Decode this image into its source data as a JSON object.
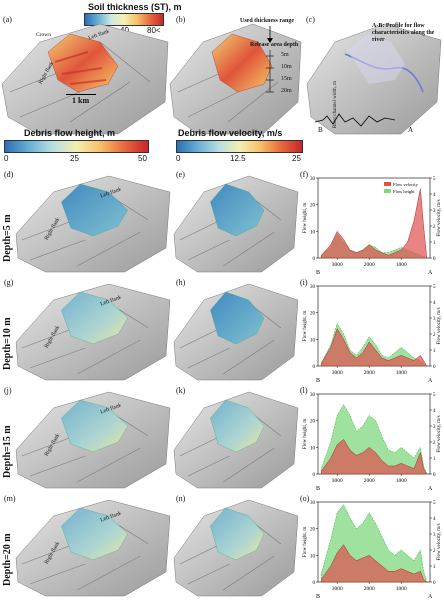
{
  "top_colorbar": {
    "title": "Soil thickness (ST), m",
    "ticks": [
      "0",
      "40",
      "80<"
    ]
  },
  "height_colorbar": {
    "title": "Debris flow height, m",
    "ticks": [
      "0",
      "25",
      "50"
    ]
  },
  "velocity_colorbar": {
    "title": "Debris flow velocity, m/s",
    "ticks": [
      "0",
      "12.5",
      "25"
    ]
  },
  "panels": {
    "a": "(a)",
    "b": "(b)",
    "c": "(c)",
    "d": "(d)",
    "e": "(e)",
    "f": "(f)",
    "g": "(g)",
    "h": "(h)",
    "i": "(i)",
    "j": "(j)",
    "k": "(k)",
    "l": "(l)",
    "m": "(m)",
    "n": "(n)",
    "o": "(o)"
  },
  "row_labels": [
    "Depth=5 m",
    "Depth=10 m",
    "Depth=15 m",
    "Depth=20 m"
  ],
  "map_labels": {
    "left_flank": "Left flank",
    "right_flank": "Right flank",
    "crown": "Crown",
    "scale": "1 km"
  },
  "panel_b": {
    "used_range": "Used thickness range",
    "release": "Release area depth",
    "depths": [
      "5m",
      "10m",
      "15m",
      "20m"
    ]
  },
  "panel_c": {
    "profile_note": "A-B: Profile for flow characteristics along the river",
    "river_label": "River channel width, m",
    "point_a": "A",
    "point_b": "B"
  },
  "profile_axes": {
    "ylabel_left": "Flow height, m",
    "ylabel_right": "Flow velocity, m/s",
    "xticks": [
      "3000",
      "2000",
      "1000"
    ],
    "end_b": "B",
    "end_a": "A",
    "yticks_left": [
      "0",
      "10",
      "20",
      "30"
    ],
    "yticks_right": [
      "0",
      "1",
      "2",
      "3",
      "4",
      "5"
    ]
  },
  "legend": {
    "velocity": "Flow velocity",
    "height": "Flow height"
  },
  "colors": {
    "velocity_fill": "#e05050",
    "height_fill": "#7fd87f"
  },
  "chart_data": [
    {
      "type": "area",
      "panel": "(f)",
      "x": [
        3500,
        3200,
        3000,
        2800,
        2600,
        2400,
        2200,
        2000,
        1800,
        1600,
        1400,
        1200,
        1000,
        800,
        600,
        400,
        300,
        200
      ],
      "series": [
        {
          "name": "Flow height",
          "values": [
            1,
            4,
            9,
            6,
            3,
            2,
            3,
            5,
            4,
            2,
            2,
            3,
            4,
            3,
            2,
            1,
            0.5,
            0
          ]
        },
        {
          "name": "Flow velocity",
          "values": [
            1,
            5,
            10,
            7,
            3,
            2,
            3,
            5,
            3,
            2,
            1,
            2,
            3,
            6,
            14,
            26,
            12,
            0
          ]
        }
      ],
      "ylim": [
        0,
        30
      ]
    },
    {
      "type": "area",
      "panel": "(i)",
      "x": [
        3500,
        3200,
        3000,
        2800,
        2600,
        2400,
        2200,
        2000,
        1800,
        1600,
        1400,
        1200,
        1000,
        800,
        600,
        400,
        300,
        200
      ],
      "series": [
        {
          "name": "Flow height",
          "values": [
            1,
            8,
            16,
            12,
            6,
            4,
            7,
            11,
            8,
            4,
            3,
            5,
            7,
            5,
            3,
            2,
            1,
            0
          ]
        },
        {
          "name": "Flow velocity",
          "values": [
            1,
            7,
            14,
            10,
            5,
            3,
            5,
            9,
            6,
            3,
            2,
            3,
            4,
            3,
            2,
            4,
            2,
            0
          ]
        }
      ],
      "ylim": [
        0,
        30
      ]
    },
    {
      "type": "area",
      "panel": "(l)",
      "x": [
        3500,
        3200,
        3000,
        2800,
        2600,
        2400,
        2200,
        2000,
        1800,
        1600,
        1400,
        1200,
        1000,
        800,
        600,
        400,
        300,
        200
      ],
      "series": [
        {
          "name": "Flow height",
          "values": [
            2,
            12,
            22,
            26,
            22,
            16,
            18,
            22,
            20,
            14,
            9,
            8,
            10,
            8,
            6,
            10,
            3,
            0
          ]
        },
        {
          "name": "Flow velocity",
          "values": [
            1,
            6,
            11,
            13,
            9,
            7,
            8,
            10,
            8,
            5,
            3,
            3,
            4,
            3,
            2,
            8,
            2,
            0
          ]
        }
      ],
      "ylim": [
        0,
        30
      ]
    },
    {
      "type": "area",
      "panel": "(o)",
      "x": [
        3500,
        3200,
        3000,
        2800,
        2600,
        2400,
        2200,
        2000,
        1800,
        1600,
        1400,
        1200,
        1000,
        800,
        600,
        400,
        300,
        200
      ],
      "series": [
        {
          "name": "Flow height",
          "values": [
            3,
            16,
            26,
            29,
            24,
            20,
            22,
            26,
            22,
            17,
            12,
            10,
            12,
            10,
            8,
            12,
            4,
            0
          ]
        },
        {
          "name": "Flow velocity",
          "values": [
            1,
            6,
            11,
            14,
            10,
            8,
            9,
            10,
            8,
            6,
            4,
            4,
            5,
            4,
            3,
            4,
            1,
            0
          ]
        }
      ],
      "ylim": [
        0,
        30
      ]
    }
  ]
}
